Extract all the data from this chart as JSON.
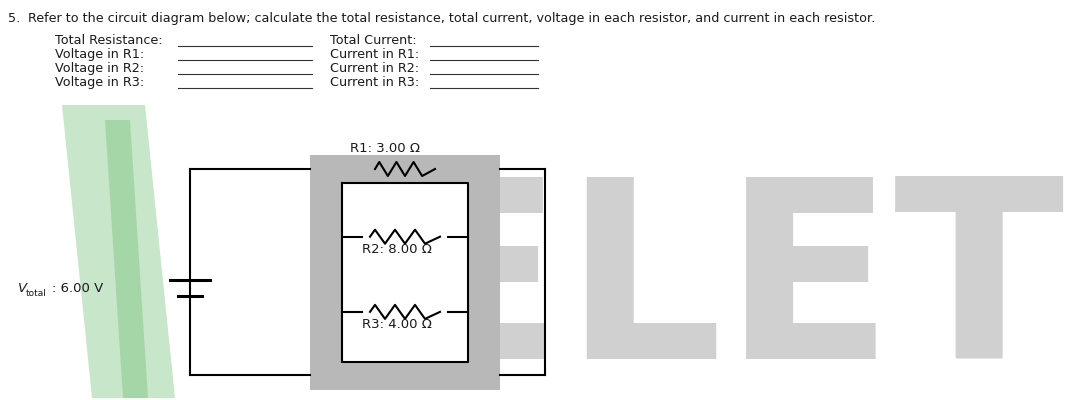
{
  "title_number": "5.",
  "title_text": "Refer to the circuit diagram below; calculate the total resistance, total current, voltage in each resistor, and current in each resistor.",
  "labels_left": [
    "Total Resistance:",
    "Voltage in R1:",
    "Voltage in R2:",
    "Voltage in R3:"
  ],
  "labels_right": [
    "Total Current:",
    "Current in R1:",
    "Current in R2:",
    "Current in R3:"
  ],
  "vtotal_value": ": 6.00 V",
  "r1_label": "R1: 3.00 Ω",
  "r2_label": "R2: 8.00 Ω",
  "r3_label": "R3: 4.00 Ω",
  "bg_color": "#ffffff",
  "text_color": "#1a1a1a",
  "underline_color": "#333333",
  "watermark_color": "#d0d0d0",
  "watermark_text": "ELETC",
  "logo_green_light": "#c8e6c9",
  "logo_green_mid": "#a5d6a7",
  "circuit_wire_color": "#000000",
  "circuit_box_color": "#b8b8b8",
  "font_size_title": 9.2,
  "font_size_labels": 9.2,
  "font_size_resistor": 9.5,
  "font_size_vtotal": 9.5,
  "font_size_watermark": 180
}
